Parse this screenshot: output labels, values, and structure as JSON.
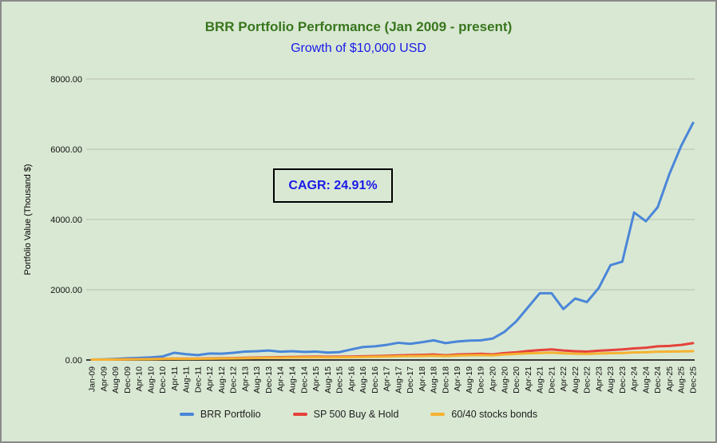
{
  "header": {
    "title": "BRR Portfolio Performance (Jan 2009 - present)",
    "subtitle": "Growth of $10,000 USD"
  },
  "annotation": {
    "cagr_label": "CAGR: 24.91%"
  },
  "colors": {
    "background": "#d9e8d3",
    "page_border": "#8a8a8a",
    "title_green": "#38761d",
    "subtitle_blue": "#1a1ae8",
    "annotation_border": "#000000",
    "grid": "#b6bdb2",
    "axis": "#3a3a3a",
    "tick_text": "#111111"
  },
  "chart_data": {
    "type": "line",
    "title": "BRR Portfolio Performance (Jan 2009 - present)",
    "subtitle": "Growth of $10,000 USD",
    "xlabel": "",
    "ylabel": "Portfolio Value (Thousand $)",
    "ylim": [
      0,
      8000
    ],
    "ytick_values": [
      0,
      2000,
      4000,
      6000,
      8000
    ],
    "ytick_labels": [
      "0.00",
      "2000.00",
      "4000.00",
      "6000.00",
      "8000.00"
    ],
    "grid": "horizontal",
    "legend_position": "bottom",
    "annotations": [
      {
        "text": "CAGR: 24.91%"
      }
    ],
    "categories": [
      "Jan-09",
      "Apr-09",
      "Aug-09",
      "Dec-09",
      "Apr-10",
      "Aug-10",
      "Dec-10",
      "Apr-11",
      "Aug-11",
      "Dec-11",
      "Apr-12",
      "Aug-12",
      "Dec-12",
      "Apr-13",
      "Aug-13",
      "Dec-13",
      "Apr-14",
      "Aug-14",
      "Dec-14",
      "Apr-15",
      "Aug-15",
      "Dec-15",
      "Apr-16",
      "Aug-16",
      "Dec-16",
      "Apr-17",
      "Aug-17",
      "Dec-17",
      "Apr-18",
      "Aug-18",
      "Dec-18",
      "Apr-19",
      "Aug-19",
      "Dec-19",
      "Apr-20",
      "Aug-20",
      "Dec-20",
      "Apr-21",
      "Aug-21",
      "Dec-21",
      "Apr-22",
      "Aug-22",
      "Dec-22",
      "Apr-23",
      "Aug-23",
      "Dec-23",
      "Apr-24",
      "Aug-24",
      "Dec-24",
      "Apr-25",
      "Aug-25",
      "Dec-25"
    ],
    "series": [
      {
        "name": "BRR Portfolio",
        "color": "#4a86d8",
        "values": [
          10,
          18,
          30,
          48,
          60,
          75,
          100,
          205,
          165,
          140,
          185,
          180,
          205,
          240,
          250,
          270,
          235,
          250,
          230,
          240,
          210,
          225,
          300,
          370,
          390,
          430,
          490,
          460,
          505,
          560,
          480,
          525,
          550,
          560,
          610,
          800,
          1100,
          1500,
          1900,
          1900,
          1450,
          1750,
          1650,
          2050,
          2700,
          2800,
          4200,
          3950,
          4350,
          5300,
          6100,
          6750
        ]
      },
      {
        "name": "SP 500 Buy & Hold",
        "color": "#e5423b",
        "values": [
          10,
          12,
          14,
          20,
          22,
          26,
          35,
          40,
          38,
          40,
          46,
          50,
          55,
          62,
          68,
          75,
          80,
          85,
          90,
          94,
          90,
          95,
          98,
          105,
          110,
          120,
          130,
          140,
          145,
          155,
          135,
          155,
          165,
          175,
          160,
          195,
          220,
          255,
          280,
          300,
          270,
          250,
          240,
          265,
          280,
          300,
          330,
          350,
          390,
          400,
          430,
          480
        ]
      },
      {
        "name": "60/40 stocks bonds",
        "color": "#f5b231",
        "values": [
          10,
          11,
          13,
          18,
          20,
          23,
          30,
          34,
          32,
          34,
          38,
          42,
          46,
          52,
          56,
          62,
          66,
          70,
          74,
          77,
          74,
          77,
          80,
          86,
          90,
          97,
          104,
          112,
          115,
          122,
          110,
          125,
          133,
          140,
          132,
          155,
          172,
          190,
          200,
          210,
          190,
          178,
          172,
          185,
          192,
          200,
          215,
          222,
          235,
          238,
          245,
          250
        ]
      }
    ]
  }
}
